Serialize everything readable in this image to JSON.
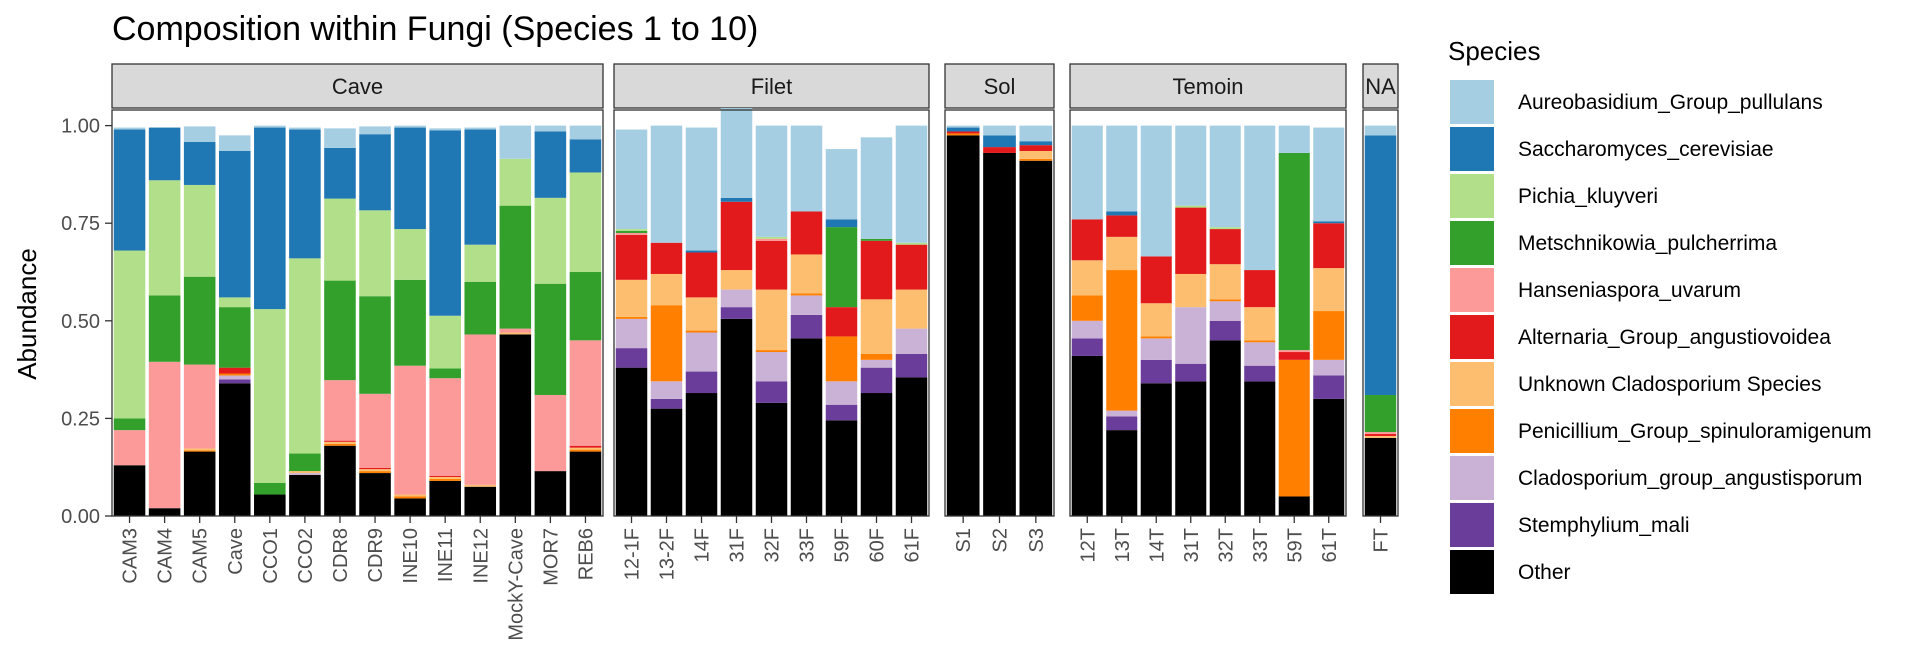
{
  "chart_data": {
    "type": "bar",
    "stacked": true,
    "title": "Composition within Fungi (Species 1 to 10)",
    "xlabel": "",
    "ylabel": "Abundance",
    "ylim": [
      0,
      1.04
    ],
    "y_ticks": [
      "0.00",
      "0.25",
      "0.50",
      "0.75",
      "1.00"
    ],
    "grid": false,
    "legend_title": "Species",
    "legend_position": "right",
    "species": [
      {
        "name": "Aureobasidium_Group_pullulans",
        "color": "#A6CEE3"
      },
      {
        "name": "Saccharomyces_cerevisiae",
        "color": "#1F78B4"
      },
      {
        "name": "Pichia_kluyveri",
        "color": "#B2DF8A"
      },
      {
        "name": "Metschnikowia_pulcherrima",
        "color": "#33A02C"
      },
      {
        "name": "Hanseniaspora_uvarum",
        "color": "#FB9A99"
      },
      {
        "name": "Alternaria_Group_angustiovoidea",
        "color": "#E31A1C"
      },
      {
        "name": "Unknown Cladosporium Species",
        "color": "#FDBF6F"
      },
      {
        "name": "Penicillium_Group_spinuloramigenum",
        "color": "#FF7F00"
      },
      {
        "name": "Cladosporium_group_angustisporum",
        "color": "#CAB2D6"
      },
      {
        "name": "Stemphylium_mali",
        "color": "#6A3D9A"
      },
      {
        "name": "Other",
        "color": "#000000"
      }
    ],
    "stack_order_bottom_to_top": [
      "Other",
      "Stemphylium_mali",
      "Cladosporium_group_angustisporum",
      "Penicillium_Group_spinuloramigenum",
      "Unknown Cladosporium Species",
      "Alternaria_Group_angustiovoidea",
      "Hanseniaspora_uvarum",
      "Metschnikowia_pulcherrima",
      "Pichia_kluyveri",
      "Saccharomyces_cerevisiae",
      "Aureobasidium_Group_pullulans"
    ],
    "facets": [
      {
        "label": "Cave",
        "samples": [
          {
            "sample": "CAM3",
            "values": [
              0.005,
              0.31,
              0.43,
              0.03,
              0.09,
              0.0,
              0.0,
              0.0,
              0.0,
              0.0,
              0.13
            ]
          },
          {
            "sample": "CAM4",
            "values": [
              0.0,
              0.135,
              0.295,
              0.17,
              0.375,
              0.0,
              0.0,
              0.0,
              0.0,
              0.0,
              0.02
            ]
          },
          {
            "sample": "CAM5",
            "values": [
              0.04,
              0.11,
              0.235,
              0.225,
              0.215,
              0.0,
              0.005,
              0.003,
              0.0,
              0.0,
              0.165
            ]
          },
          {
            "sample": "Cave",
            "values": [
              0.04,
              0.375,
              0.025,
              0.155,
              0.0,
              0.015,
              0.0,
              0.005,
              0.01,
              0.01,
              0.34
            ]
          },
          {
            "sample": "CCO1",
            "values": [
              0.005,
              0.465,
              0.445,
              0.03,
              0.0,
              0.0,
              0.0,
              0.0,
              0.0,
              0.0,
              0.055
            ]
          },
          {
            "sample": "CCO2",
            "values": [
              0.005,
              0.33,
              0.5,
              0.045,
              0.0,
              0.0,
              0.005,
              0.0,
              0.005,
              0.0,
              0.105
            ]
          },
          {
            "sample": "CDR8",
            "values": [
              0.05,
              0.13,
              0.21,
              0.255,
              0.155,
              0.003,
              0.005,
              0.005,
              0.0,
              0.0,
              0.18
            ]
          },
          {
            "sample": "CDR9",
            "values": [
              0.02,
              0.195,
              0.22,
              0.25,
              0.19,
              0.003,
              0.005,
              0.005,
              0.0,
              0.0,
              0.11
            ]
          },
          {
            "sample": "INE10",
            "values": [
              0.005,
              0.26,
              0.13,
              0.22,
              0.33,
              0.0,
              0.005,
              0.005,
              0.0,
              0.0,
              0.045
            ]
          },
          {
            "sample": "INE11",
            "values": [
              0.005,
              0.475,
              0.135,
              0.025,
              0.25,
              0.003,
              0.005,
              0.005,
              0.0,
              0.0,
              0.09
            ]
          },
          {
            "sample": "INE12",
            "values": [
              0.005,
              0.295,
              0.095,
              0.135,
              0.385,
              0.0,
              0.005,
              0.0,
              0.0,
              0.0,
              0.075
            ]
          },
          {
            "sample": "MockY-Cave",
            "values": [
              0.085,
              0.0,
              0.12,
              0.315,
              0.01,
              0.0,
              0.005,
              0.0,
              0.0,
              0.0,
              0.465
            ]
          },
          {
            "sample": "MOR7",
            "values": [
              0.015,
              0.17,
              0.22,
              0.285,
              0.195,
              0.0,
              0.0,
              0.0,
              0.0,
              0.0,
              0.115
            ]
          },
          {
            "sample": "REB6",
            "values": [
              0.035,
              0.085,
              0.255,
              0.175,
              0.27,
              0.005,
              0.005,
              0.005,
              0.0,
              0.0,
              0.165
            ]
          }
        ]
      },
      {
        "label": "Filet",
        "samples": [
          {
            "sample": "12-1F",
            "values": [
              0.255,
              0.0,
              0.005,
              0.005,
              0.005,
              0.115,
              0.095,
              0.005,
              0.075,
              0.05,
              0.38
            ]
          },
          {
            "sample": "13-2F",
            "values": [
              0.3,
              0.0,
              0.0,
              0.0,
              0.0,
              0.08,
              0.08,
              0.195,
              0.045,
              0.025,
              0.275
            ]
          },
          {
            "sample": "14F",
            "values": [
              0.315,
              0.005,
              0.0,
              0.0,
              0.0,
              0.115,
              0.085,
              0.005,
              0.1,
              0.055,
              0.315
            ]
          },
          {
            "sample": "31F",
            "values": [
              0.23,
              0.01,
              0.0,
              0.0,
              0.0,
              0.175,
              0.05,
              0.0,
              0.045,
              0.03,
              0.505
            ]
          },
          {
            "sample": "32F",
            "values": [
              0.285,
              0.0,
              0.005,
              0.0,
              0.005,
              0.125,
              0.155,
              0.005,
              0.075,
              0.055,
              0.29
            ]
          },
          {
            "sample": "33F",
            "values": [
              0.22,
              0.0,
              0.0,
              0.0,
              0.0,
              0.11,
              0.1,
              0.005,
              0.05,
              0.06,
              0.455
            ]
          },
          {
            "sample": "59F",
            "values": [
              0.18,
              0.02,
              0.0,
              0.205,
              0.0,
              0.075,
              0.0,
              0.115,
              0.06,
              0.04,
              0.245
            ]
          },
          {
            "sample": "60F",
            "values": [
              0.26,
              0.0,
              0.0,
              0.005,
              0.0,
              0.15,
              0.14,
              0.015,
              0.02,
              0.065,
              0.315
            ]
          },
          {
            "sample": "61F",
            "values": [
              0.3,
              0.0,
              0.005,
              0.0,
              0.0,
              0.115,
              0.1,
              0.0,
              0.065,
              0.06,
              0.355
            ]
          }
        ]
      },
      {
        "label": "Sol",
        "samples": [
          {
            "sample": "S1",
            "values": [
              0.005,
              0.01,
              0.0,
              0.0,
              0.0,
              0.005,
              0.0,
              0.005,
              0.0,
              0.0,
              0.975
            ]
          },
          {
            "sample": "S2",
            "values": [
              0.025,
              0.03,
              0.0,
              0.0,
              0.0,
              0.015,
              0.0,
              0.0,
              0.0,
              0.0,
              0.93
            ]
          },
          {
            "sample": "S3",
            "values": [
              0.04,
              0.01,
              0.0,
              0.0,
              0.0,
              0.015,
              0.02,
              0.005,
              0.0,
              0.0,
              0.91
            ]
          }
        ]
      },
      {
        "label": "Temoin",
        "samples": [
          {
            "sample": "12T",
            "values": [
              0.24,
              0.0,
              0.0,
              0.0,
              0.0,
              0.105,
              0.09,
              0.065,
              0.045,
              0.045,
              0.41
            ]
          },
          {
            "sample": "13T",
            "values": [
              0.22,
              0.01,
              0.0,
              0.0,
              0.0,
              0.055,
              0.085,
              0.36,
              0.015,
              0.035,
              0.22
            ]
          },
          {
            "sample": "14T",
            "values": [
              0.335,
              0.0,
              0.0,
              0.0,
              0.0,
              0.12,
              0.085,
              0.005,
              0.055,
              0.06,
              0.34
            ]
          },
          {
            "sample": "31T",
            "values": [
              0.205,
              0.0,
              0.005,
              0.0,
              0.0,
              0.17,
              0.085,
              0.0,
              0.145,
              0.045,
              0.345
            ]
          },
          {
            "sample": "32T",
            "values": [
              0.26,
              0.0,
              0.005,
              0.0,
              0.0,
              0.09,
              0.09,
              0.005,
              0.05,
              0.05,
              0.45
            ]
          },
          {
            "sample": "33T",
            "values": [
              0.37,
              0.0,
              0.0,
              0.0,
              0.0,
              0.095,
              0.085,
              0.005,
              0.06,
              0.04,
              0.345
            ]
          },
          {
            "sample": "59T",
            "values": [
              0.07,
              0.0,
              0.0,
              0.505,
              0.005,
              0.02,
              0.0,
              0.35,
              0.0,
              0.0,
              0.05
            ]
          },
          {
            "sample": "61T",
            "values": [
              0.24,
              0.005,
              0.0,
              0.0,
              0.0,
              0.115,
              0.11,
              0.125,
              0.04,
              0.06,
              0.3
            ]
          }
        ]
      },
      {
        "label": "NA",
        "samples": [
          {
            "sample": "FT",
            "values": [
              0.025,
              0.665,
              0.0,
              0.095,
              0.005,
              0.005,
              0.005,
              0.0,
              0.0,
              0.0,
              0.2
            ]
          }
        ]
      }
    ]
  }
}
